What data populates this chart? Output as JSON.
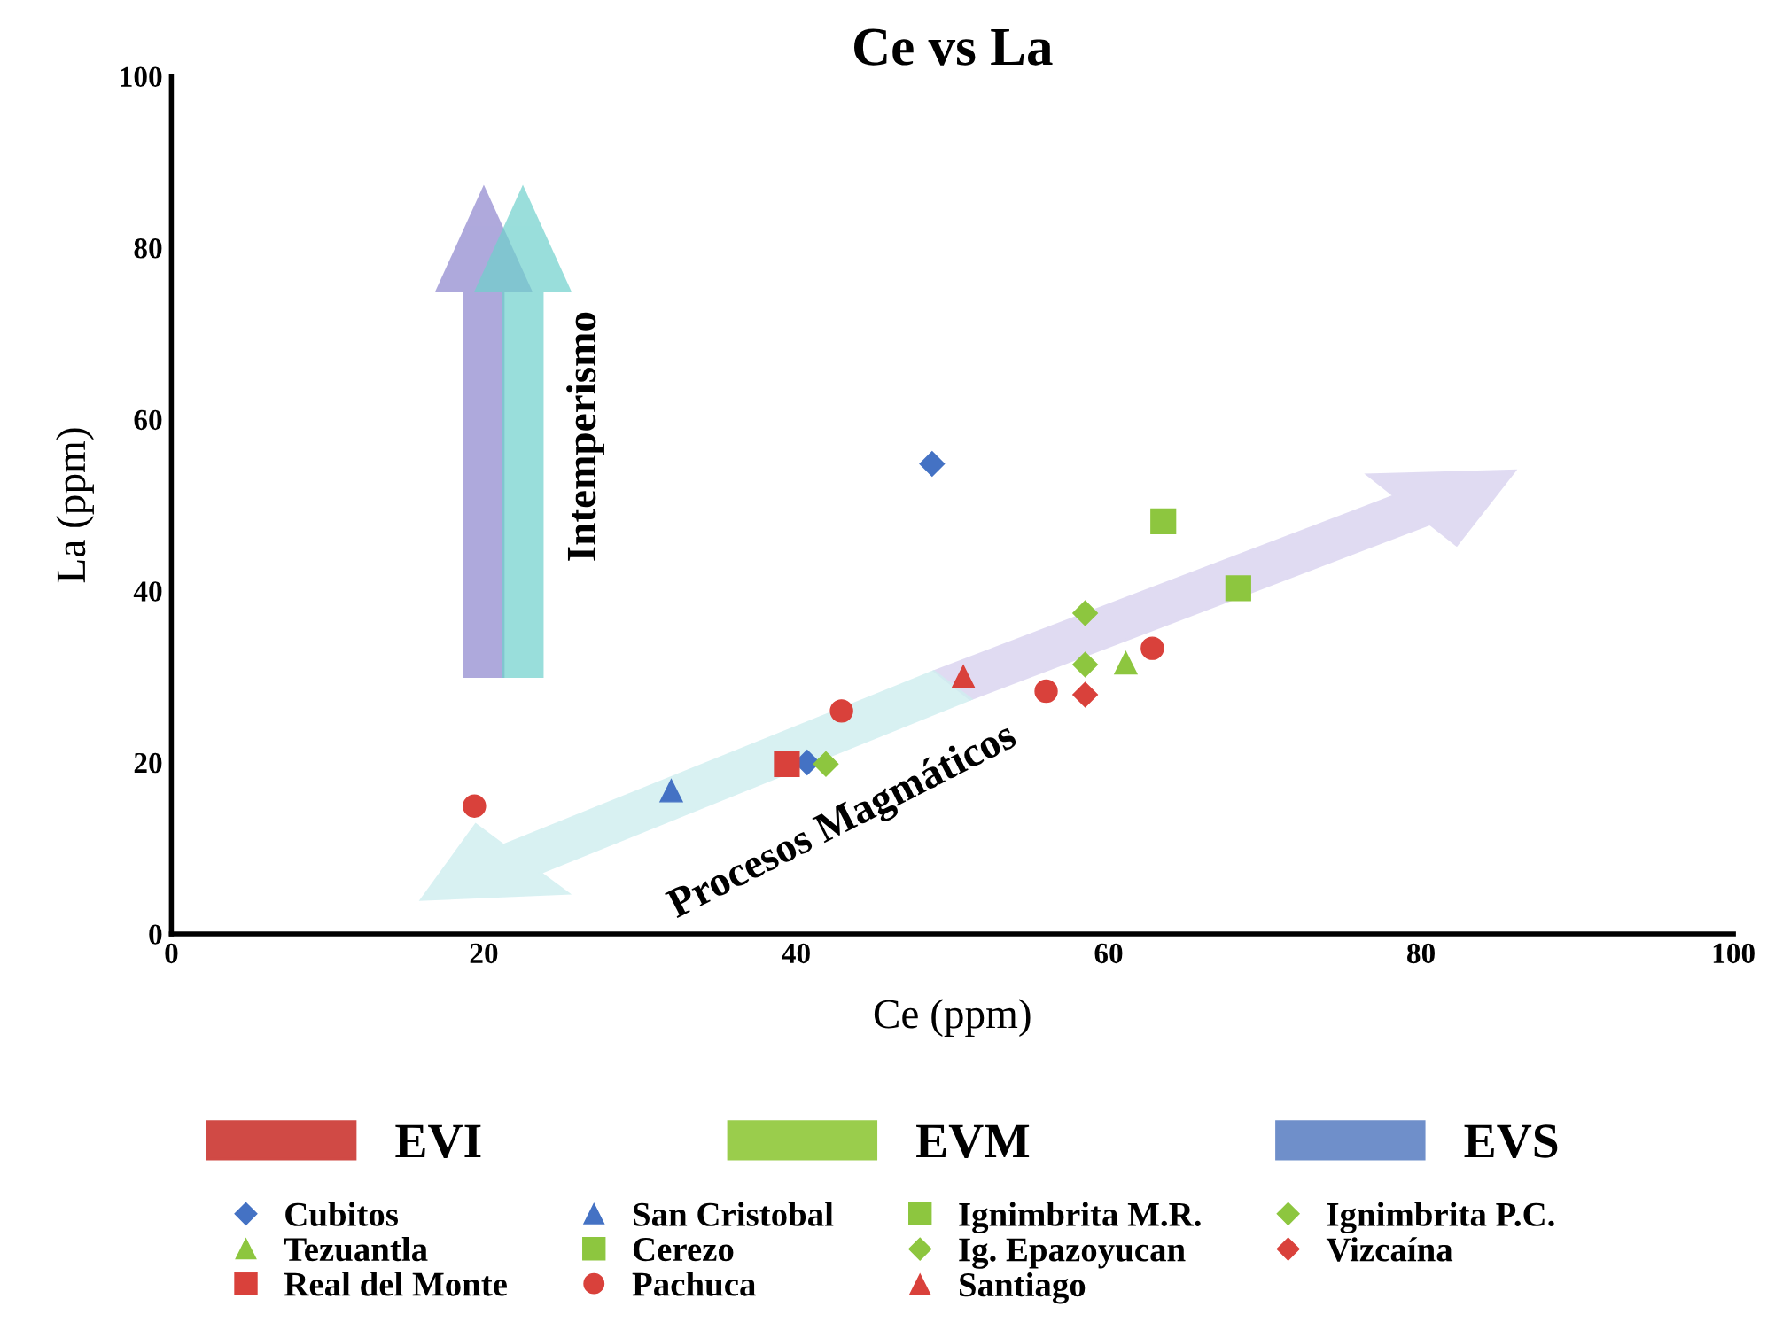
{
  "chart_data": {
    "type": "scatter",
    "title": "Ce vs La",
    "xlabel": "Ce (ppm)",
    "ylabel": "La (ppm)",
    "xlim": [
      0,
      100
    ],
    "ylim": [
      0,
      100
    ],
    "xticks": [
      0,
      20,
      40,
      60,
      80,
      100
    ],
    "yticks": [
      0,
      20,
      40,
      60,
      80,
      100
    ],
    "grid": false,
    "legend": "bottom",
    "annotations": [
      "Intemperismo",
      "Procesos Magmáticos"
    ],
    "series": [
      {
        "name": "EVI",
        "type": "bar",
        "color": "#d04a45"
      },
      {
        "name": "EVM",
        "type": "bar",
        "color": "#9acd4c"
      },
      {
        "name": "EVS",
        "type": "bar",
        "color": "#6f8fca"
      },
      {
        "name": "Cubitos",
        "marker": "diamond",
        "color": "#4472c4",
        "x": [
          48.7,
          40.7
        ],
        "values": [
          54.8,
          20.0
        ]
      },
      {
        "name": "San Cristobal",
        "marker": "triangle",
        "color": "#4472c4",
        "x": [
          32.0
        ],
        "values": [
          16.7
        ]
      },
      {
        "name": "Ignimbrita M.R.",
        "marker": "square",
        "color": "#8dc63f",
        "x": [
          63.5
        ],
        "values": [
          48.1
        ]
      },
      {
        "name": "Ignimbrita P.C.",
        "marker": "diamond",
        "color": "#8dc63f",
        "x": [
          41.9
        ],
        "values": [
          19.8
        ]
      },
      {
        "name": "Tezuantla",
        "marker": "triangle",
        "color": "#8dc63f",
        "x": [
          61.1
        ],
        "values": [
          31.6
        ]
      },
      {
        "name": "Cerezo",
        "marker": "square",
        "color": "#8dc63f",
        "x": [
          68.3
        ],
        "values": [
          40.3
        ]
      },
      {
        "name": "Ig. Epazoyucan",
        "marker": "diamond",
        "color": "#8dc63f",
        "x": [
          58.5,
          58.5
        ],
        "values": [
          37.4,
          31.4
        ]
      },
      {
        "name": "Vizcaína",
        "marker": "diamond",
        "color": "#d9413b",
        "x": [
          58.5
        ],
        "values": [
          27.9
        ]
      },
      {
        "name": "Real del Monte",
        "marker": "square",
        "color": "#d9413b",
        "x": [
          39.4
        ],
        "values": [
          19.8
        ]
      },
      {
        "name": "Pachuca",
        "marker": "circle",
        "color": "#d9413b",
        "x": [
          19.4,
          42.9,
          56.0,
          62.8
        ],
        "values": [
          14.9,
          26.0,
          28.3,
          33.3
        ]
      },
      {
        "name": "Santiago",
        "marker": "triangle",
        "color": "#d9413b",
        "x": [
          50.7
        ],
        "values": [
          30.0
        ]
      }
    ]
  }
}
